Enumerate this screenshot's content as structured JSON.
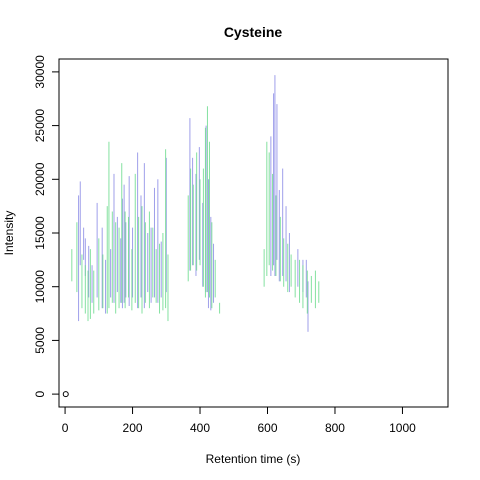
{
  "chart_data": {
    "type": "line",
    "title": "Cysteine",
    "xlabel": "Retention time (s)",
    "ylabel": "Intensity",
    "xlim": [
      -18,
      1135
    ],
    "ylim": [
      -1200,
      31200
    ],
    "x_ticks": [
      0,
      200,
      400,
      600,
      800,
      1000
    ],
    "y_ticks": [
      0,
      5000,
      10000,
      15000,
      20000,
      25000,
      30000
    ],
    "grid": false,
    "legend": "none",
    "colors": {
      "blue": "#8e8ee6",
      "green": "#6fdc8f"
    },
    "series": [
      {
        "color_key": "blue",
        "segments": [
          [
            40,
            6800,
            18500
          ],
          [
            45,
            12000,
            19800
          ],
          [
            55,
            12500,
            15500
          ],
          [
            60,
            11000,
            14500
          ],
          [
            70,
            9000,
            13800
          ],
          [
            80,
            8500,
            12000
          ],
          [
            95,
            9000,
            17800
          ],
          [
            110,
            8000,
            15500
          ],
          [
            120,
            7500,
            12500
          ],
          [
            135,
            9000,
            13500
          ],
          [
            145,
            8500,
            20500
          ],
          [
            155,
            9500,
            16500
          ],
          [
            165,
            8500,
            14500
          ],
          [
            170,
            8000,
            18200
          ],
          [
            175,
            8500,
            19500
          ],
          [
            180,
            9000,
            16000
          ],
          [
            190,
            8200,
            20300
          ],
          [
            200,
            9000,
            15500
          ],
          [
            215,
            8000,
            22500
          ],
          [
            225,
            9000,
            18500
          ],
          [
            235,
            8000,
            21500
          ],
          [
            245,
            9500,
            15000
          ],
          [
            255,
            8500,
            15500
          ],
          [
            265,
            9000,
            19200
          ],
          [
            275,
            8500,
            20000
          ],
          [
            285,
            9000,
            14200
          ],
          [
            300,
            9500,
            22000
          ],
          [
            370,
            11500,
            25700
          ],
          [
            378,
            12000,
            22000
          ],
          [
            388,
            11000,
            20500
          ],
          [
            398,
            12500,
            23000
          ],
          [
            408,
            10000,
            17800
          ],
          [
            418,
            9500,
            25000
          ],
          [
            425,
            8000,
            20000
          ],
          [
            432,
            7800,
            16500
          ],
          [
            440,
            8500,
            14000
          ],
          [
            610,
            11000,
            24000
          ],
          [
            618,
            12000,
            28000
          ],
          [
            622,
            11000,
            29700
          ],
          [
            628,
            12500,
            27000
          ],
          [
            635,
            10500,
            19000
          ],
          [
            645,
            11000,
            21000
          ],
          [
            655,
            10500,
            17500
          ],
          [
            665,
            9500,
            15000
          ],
          [
            690,
            10000,
            13500
          ],
          [
            705,
            9500,
            12500
          ],
          [
            715,
            9000,
            12500
          ],
          [
            720,
            5800,
            10500
          ]
        ]
      },
      {
        "color_key": "green",
        "segments": [
          [
            20,
            10500,
            13500
          ],
          [
            35,
            9500,
            16000
          ],
          [
            50,
            8000,
            13000
          ],
          [
            60,
            7500,
            12000
          ],
          [
            68,
            6800,
            11500
          ],
          [
            75,
            7000,
            13500
          ],
          [
            85,
            7500,
            11500
          ],
          [
            100,
            7800,
            14500
          ],
          [
            112,
            8000,
            13000
          ],
          [
            125,
            7500,
            17500
          ],
          [
            130,
            8000,
            23500
          ],
          [
            140,
            8500,
            17000
          ],
          [
            150,
            7500,
            16000
          ],
          [
            160,
            8000,
            15500
          ],
          [
            168,
            8500,
            21500
          ],
          [
            178,
            8000,
            17000
          ],
          [
            188,
            9000,
            16500
          ],
          [
            198,
            7800,
            13500
          ],
          [
            208,
            8500,
            20500
          ],
          [
            218,
            8000,
            16500
          ],
          [
            228,
            7500,
            17500
          ],
          [
            238,
            8500,
            16000
          ],
          [
            250,
            8000,
            17000
          ],
          [
            260,
            9000,
            15500
          ],
          [
            270,
            8500,
            13500
          ],
          [
            280,
            7500,
            14000
          ],
          [
            290,
            7800,
            15000
          ],
          [
            298,
            8000,
            22800
          ],
          [
            305,
            6800,
            13000
          ],
          [
            365,
            10500,
            18500
          ],
          [
            372,
            11500,
            21000
          ],
          [
            380,
            12000,
            19500
          ],
          [
            390,
            11500,
            22500
          ],
          [
            400,
            12000,
            20000
          ],
          [
            410,
            10000,
            21000
          ],
          [
            416,
            9000,
            24800
          ],
          [
            422,
            9500,
            26800
          ],
          [
            428,
            9000,
            23500
          ],
          [
            435,
            8000,
            16000
          ],
          [
            445,
            9000,
            12500
          ],
          [
            458,
            7500,
            8500
          ],
          [
            590,
            10000,
            13500
          ],
          [
            598,
            11000,
            23500
          ],
          [
            605,
            12000,
            22500
          ],
          [
            615,
            11500,
            20500
          ],
          [
            625,
            11000,
            18500
          ],
          [
            638,
            10500,
            16500
          ],
          [
            648,
            10000,
            14500
          ],
          [
            660,
            9500,
            14000
          ],
          [
            670,
            10000,
            13000
          ],
          [
            682,
            9000,
            12500
          ],
          [
            695,
            8500,
            12500
          ],
          [
            705,
            8000,
            12000
          ],
          [
            718,
            7500,
            11500
          ],
          [
            730,
            8500,
            11000
          ],
          [
            742,
            8000,
            11500
          ],
          [
            752,
            8500,
            10500
          ]
        ]
      }
    ],
    "points": [
      {
        "x": 2,
        "y": 0
      }
    ]
  }
}
